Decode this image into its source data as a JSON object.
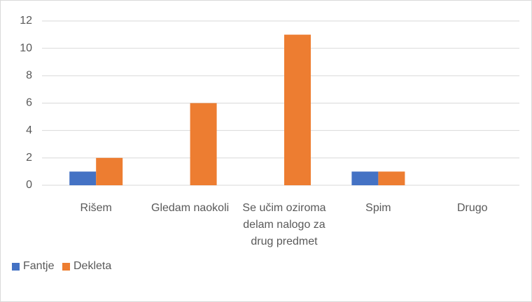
{
  "chart_data": {
    "type": "bar",
    "categories": [
      "Rišem",
      "Gledam naokoli",
      "Se učim oziroma delam nalogo za drug predmet",
      "Spim",
      "Drugo"
    ],
    "series": [
      {
        "name": "Fantje",
        "color": "#4472c4",
        "values": [
          1,
          0,
          0,
          1,
          0
        ]
      },
      {
        "name": "Dekleta",
        "color": "#ed7d31",
        "values": [
          2,
          6,
          11,
          1,
          0
        ]
      }
    ],
    "ylim": [
      0,
      12
    ],
    "yticks": [
      0,
      2,
      4,
      6,
      8,
      10,
      12
    ],
    "grid": true,
    "legend": "bottom-left"
  }
}
